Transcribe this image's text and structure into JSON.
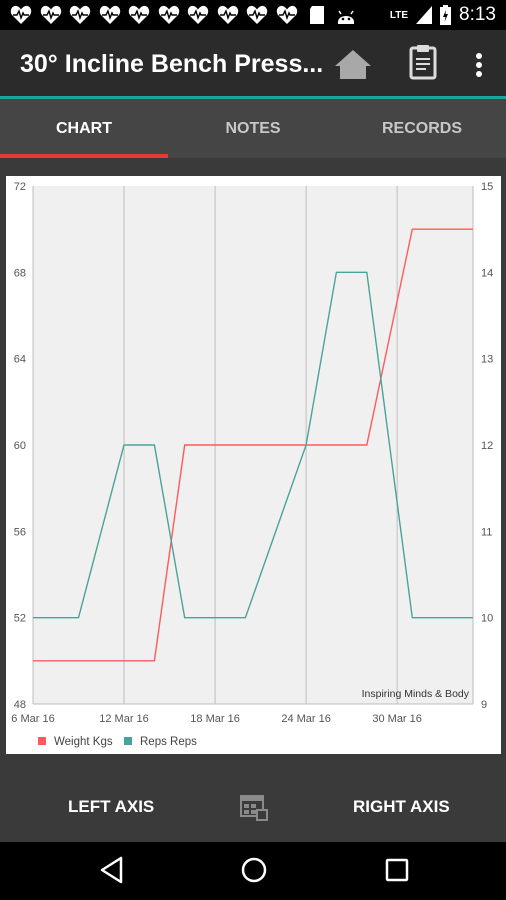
{
  "status_bar": {
    "time": "8:13",
    "network": "LTE",
    "notification_icons": [
      "heart-rate-icon",
      "heart-rate-icon",
      "heart-rate-icon",
      "heart-rate-icon",
      "heart-rate-icon",
      "heart-rate-icon",
      "heart-rate-icon",
      "heart-rate-icon",
      "heart-rate-icon",
      "heart-rate-icon",
      "sd-card-icon",
      "android-icon"
    ]
  },
  "app_bar": {
    "title": "30° Incline Bench Press...",
    "actions": [
      "home-icon",
      "clipboard-icon",
      "more-vert-icon"
    ]
  },
  "tabs": [
    {
      "label": "CHART",
      "active": true
    },
    {
      "label": "NOTES",
      "active": false
    },
    {
      "label": "RECORDS",
      "active": false
    }
  ],
  "chart_data": {
    "type": "line",
    "x": [
      "6 Mar 16",
      "9 Mar 16",
      "12 Mar 16",
      "14 Mar 16",
      "16 Mar 16",
      "20 Mar 16",
      "24 Mar 16",
      "26 Mar 16",
      "28 Mar 16",
      "31 Mar 16",
      "4 Apr 16"
    ],
    "x_ticks": [
      "6 Mar 16",
      "12 Mar 16",
      "18 Mar 16",
      "24 Mar 16",
      "30 Mar 16"
    ],
    "series": [
      {
        "name": "Weight Kgs",
        "axis": "left",
        "color": "#ff5a5a",
        "values": [
          50,
          50,
          50,
          50,
          60,
          60,
          60,
          60,
          60,
          70,
          70
        ]
      },
      {
        "name": "Reps Reps",
        "axis": "right",
        "color": "#4aa39b",
        "values": [
          10,
          10,
          12,
          12,
          10,
          10,
          12,
          14,
          14,
          10,
          10
        ]
      }
    ],
    "left_axis": {
      "ticks": [
        "48",
        "52",
        "56",
        "60",
        "64",
        "68",
        "72"
      ],
      "range": [
        48,
        72
      ]
    },
    "right_axis": {
      "ticks": [
        "9",
        "10",
        "11",
        "12",
        "13",
        "14",
        "15"
      ],
      "range": [
        9,
        15
      ]
    },
    "grid": "vertical",
    "legend_position": "bottom-left",
    "watermark": "Inspiring Minds & Body"
  },
  "bottom_bar": {
    "left_label": "LEFT AXIS",
    "center_icon": "calendar-icon",
    "right_label": "RIGHT AXIS"
  },
  "nav_bar": [
    "back-icon",
    "home-circle-icon",
    "recents-icon"
  ]
}
